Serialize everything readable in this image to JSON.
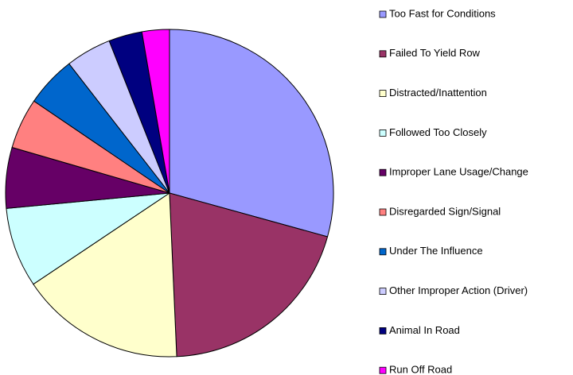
{
  "chart_data": {
    "type": "pie",
    "categories": [
      "Too Fast for Conditions",
      "Failed To Yield Row",
      "Distracted/Inattention",
      "Followed Too Closely",
      "Improper Lane Usage/Change",
      "Disregarded Sign/Signal",
      "Under The Influence",
      "Other Improper Action (Driver)",
      "Animal In Road",
      "Run Off Road"
    ],
    "values": [
      29.3,
      20.0,
      16.3,
      7.9,
      6.0,
      5.0,
      5.0,
      4.5,
      3.3,
      2.7
    ],
    "colors": [
      "#9999ff",
      "#993366",
      "#ffffcc",
      "#ccffff",
      "#660066",
      "#ff8080",
      "#0066cc",
      "#ccccff",
      "#000080",
      "#ff00ff"
    ],
    "legend": "right"
  }
}
